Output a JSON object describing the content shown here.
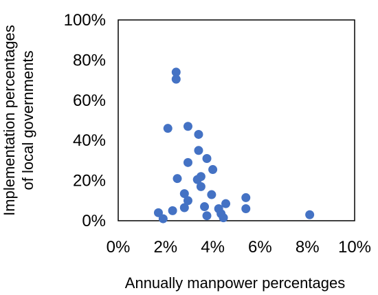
{
  "chart_data": {
    "type": "scatter",
    "xlabel": "Annually manpower percentages",
    "ylabel_lines": [
      "Implementation percentages",
      "of local governments"
    ],
    "xlim": [
      0,
      10
    ],
    "ylim": [
      0,
      100
    ],
    "x_ticks": [
      {
        "value": 0,
        "label": "0%"
      },
      {
        "value": 2,
        "label": "2%"
      },
      {
        "value": 4,
        "label": "4%"
      },
      {
        "value": 6,
        "label": "6%"
      },
      {
        "value": 8,
        "label": "8%"
      },
      {
        "value": 10,
        "label": "10%"
      }
    ],
    "y_ticks": [
      {
        "value": 0,
        "label": "0%"
      },
      {
        "value": 20,
        "label": "20%"
      },
      {
        "value": 40,
        "label": "40%"
      },
      {
        "value": 60,
        "label": "60%"
      },
      {
        "value": 80,
        "label": "80%"
      },
      {
        "value": 100,
        "label": "100%"
      }
    ],
    "grid": false,
    "legend": "none",
    "marker_color": "#4472C4",
    "points": [
      {
        "x": 1.7,
        "y": 4
      },
      {
        "x": 1.9,
        "y": 1
      },
      {
        "x": 2.1,
        "y": 46
      },
      {
        "x": 2.3,
        "y": 5
      },
      {
        "x": 2.45,
        "y": 70.5
      },
      {
        "x": 2.45,
        "y": 74
      },
      {
        "x": 2.5,
        "y": 21
      },
      {
        "x": 2.8,
        "y": 6.5
      },
      {
        "x": 2.8,
        "y": 13.5
      },
      {
        "x": 2.95,
        "y": 10
      },
      {
        "x": 2.95,
        "y": 29
      },
      {
        "x": 2.95,
        "y": 47
      },
      {
        "x": 3.35,
        "y": 20.5
      },
      {
        "x": 3.4,
        "y": 43
      },
      {
        "x": 3.4,
        "y": 35
      },
      {
        "x": 3.5,
        "y": 22
      },
      {
        "x": 3.5,
        "y": 17
      },
      {
        "x": 3.65,
        "y": 7
      },
      {
        "x": 3.75,
        "y": 2.5
      },
      {
        "x": 3.75,
        "y": 31
      },
      {
        "x": 3.95,
        "y": 13
      },
      {
        "x": 4.0,
        "y": 25.5
      },
      {
        "x": 4.25,
        "y": 6
      },
      {
        "x": 4.35,
        "y": 3.5
      },
      {
        "x": 4.45,
        "y": 1.5
      },
      {
        "x": 4.55,
        "y": 8.5
      },
      {
        "x": 5.4,
        "y": 11.5
      },
      {
        "x": 5.4,
        "y": 6
      },
      {
        "x": 8.1,
        "y": 3
      }
    ]
  }
}
